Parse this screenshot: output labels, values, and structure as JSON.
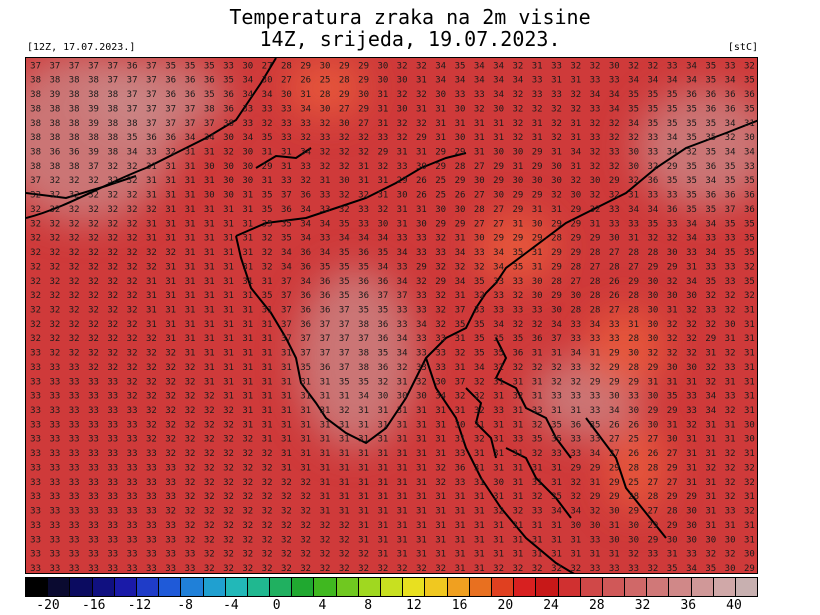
{
  "header": {
    "title_line1": "Temperatura zraka na 2m visine",
    "title_line2": "14Z, srijeda, 19.07.2023.",
    "run_label": "[12Z, 17.07.2023.]",
    "unit_label": "[stC]"
  },
  "map": {
    "background_color": "#cf3a3a",
    "hot_zone_color": "#e85a3a",
    "cool_zone_color": "#c98a8a",
    "coastline_color": "#000000",
    "grid_rows": [
      "37 37 37 37 37 36 37 35 35 35 33 30 27 28 29 30 29 29 30 32 32 34 35 34 34 32 31 33 32 32 30 32 32 33 34 35 33 32",
      "38 38 38 38 37 37 37 36 36 36 35 34 30 27 26 25 28 29 30 30 31 34 34 34 34 34 33 31 31 33 33 34 34 34 34 35 34 35",
      "38 39 38 38 38 37 37 36 36 35 36 34 34 30 31 28 29 30 31 32 32 30 33 33 34 32 33 33 32 34 34 35 35 35 36 36 36 36",
      "38 38 38 39 38 37 37 37 37 38 36 33 33 33 34 30 27 29 31 30 31 31 30 32 30 32 32 32 32 33 34 35 35 35 35 36 36 35",
      "38 38 38 39 38 38 37 37 37 37 38 33 32 33 33 32 30 27 31 32 32 31 31 31 31 32 31 32 31 32 32 34 35 35 35 35 34 31",
      "38 38 38 38 38 35 36 36 34 34 30 34 35 33 32 33 32 32 33 32 29 31 30 31 31 32 31 32 31 33 32 32 33 34 35 35 32 30",
      "38 36 36 39 38 34 33 32 31 31 32 30 31 31 34 32 32 32 29 31 31 29 29 31 30 30 29 31 34 32 33 30 33 34 32 35 34 34",
      "38 38 38 37 32 32 31 31 31 30 30 30 29 31 33 32 32 31 32 33 30 29 28 27 29 31 29 30 31 32 32 30 32 29 35 36 35 33",
      "37 32 32 32 32 32 31 31 31 31 30 30 31 33 32 31 30 31 31 29 26 25 29 30 29 30 30 30 32 30 29 32 36 35 35 34 35 35",
      "32 32 32 32 32 32 31 31 31 30 30 31 35 37 36 33 32 32 31 30 26 25 26 27 30 29 29 32 30 32 32 31 33 33 35 36 36 36",
      "32 32 32 32 32 32 32 31 31 31 31 31 35 36 34 33 32 33 32 31 31 30 30 28 27 29 31 31 29 32 33 34 34 36 35 35 37 36",
      "32 32 32 32 32 32 31 31 31 31 31 31 35 35 34 34 35 33 30 31 30 29 29 27 27 31 30 29 29 31 33 33 35 33 34 34 35 35",
      "32 32 32 32 32 32 31 31 31 31 31 31 32 35 34 33 34 34 34 33 33 32 31 30 29 29 29 28 29 29 30 31 32 32 34 33 33 35",
      "32 32 32 32 32 32 32 32 31 31 31 31 32 34 36 34 35 36 35 34 33 33 34 33 34 35 31 29 29 28 27 28 28 30 33 34 35 35",
      "32 32 32 32 32 32 32 31 31 31 31 31 32 34 36 35 35 35 34 33 29 32 32 32 34 35 31 29 28 27 28 27 29 29 31 33 33 32",
      "32 32 32 32 32 32 31 31 31 31 31 31 31 37 34 36 35 36 36 34 32 29 34 35 33 33 30 28 27 28 26 29 30 32 34 35 33 35",
      "32 32 32 32 32 32 31 31 31 31 31 31 35 37 36 36 35 36 37 37 33 32 31 32 33 32 30 29 30 28 26 28 30 30 30 32 32 32",
      "32 32 32 32 32 32 31 31 31 31 31 31 31 37 36 36 37 35 35 33 33 32 37 33 33 33 33 30 28 28 27 28 30 31 32 33 32 31",
      "32 32 32 32 32 32 31 31 31 31 31 31 31 37 36 37 37 38 36 33 34 32 35 35 34 32 32 34 33 34 33 31 30 32 32 32 30 31",
      "32 32 32 32 32 32 32 31 31 31 31 31 31 37 37 37 37 37 36 34 33 33 31 35 35 35 36 37 33 33 33 28 30 32 32 29 31 31",
      "33 32 32 32 32 32 32 32 31 31 31 31 31 31 37 37 37 38 35 34 33 33 32 35 35 36 31 31 34 31 29 30 32 32 32 31 32 31",
      "33 33 33 32 32 32 32 32 32 31 31 31 31 31 35 36 37 38 36 32 33 33 31 34 32 32 32 32 33 32 29 28 29 30 30 32 33 31",
      "33 33 33 33 33 32 32 32 32 31 31 31 31 31 31 31 35 35 32 31 32 30 37 32 31 31 31 32 32 29 29 29 31 31 31 32 31 31",
      "33 33 33 33 33 32 32 32 32 32 31 31 31 31 31 31 31 34 30 30 30 34 32 32 31 32 31 33 33 33 30 33 30 35 33 34 33 31",
      "33 33 33 33 33 33 32 32 32 32 32 31 31 31 31 31 32 31 31 31 31 31 31 32 33 31 33 31 31 33 34 30 29 29 33 34 32 31",
      "33 33 33 33 33 33 32 32 32 32 32 31 31 31 31 31 31 31 31 31 31 31 30 31 31 31 32 35 36 35 26 26 30 31 32 31 31 30",
      "33 33 33 33 33 33 32 32 32 32 32 32 31 31 31 31 31 31 31 31 31 31 31 32 31 33 35 35 33 33 27 25 27 30 31 31 31 30",
      "33 33 33 33 33 33 33 32 32 32 32 32 32 31 31 31 31 31 31 31 31 31 33 31 31 31 32 33 33 34 27 26 26 27 31 31 32 31",
      "33 33 33 33 33 33 33 33 32 32 32 32 32 31 31 31 31 31 31 31 31 32 36 31 31 31 31 31 29 29 29 28 28 29 31 32 32 32",
      "33 33 33 33 33 33 33 33 32 32 32 32 32 32 32 31 31 31 31 31 31 32 33 31 30 31 31 31 32 31 29 25 27 27 31 31 32 32",
      "33 33 33 33 33 33 33 33 32 32 32 32 32 32 32 31 31 31 31 31 31 31 31 31 31 31 32 35 32 29 29 28 28 29 29 31 32 31",
      "33 33 33 33 33 33 33 32 32 32 32 32 32 32 32 31 31 31 31 31 31 31 31 31 32 32 33 34 34 32 30 29 27 28 30 31 33 32",
      "33 33 33 33 33 33 33 33 32 32 32 32 32 32 32 32 32 31 31 31 31 31 31 31 31 31 31 31 30 30 31 30 29 29 30 31 31 31",
      "33 33 33 33 33 33 33 33 32 32 32 32 32 32 32 32 32 31 31 31 31 31 31 31 31 31 31 31 31 33 30 30 29 30 30 30 30 31",
      "33 33 33 33 33 33 33 33 33 32 32 32 32 32 32 32 32 32 31 31 31 31 31 31 31 31 31 31 31 31 31 32 33 31 33 32 32 30",
      "33 33 33 33 33 33 33 33 33 32 32 32 32 32 32 32 32 32 32 32 32 32 31 31 32 32 32 32 32 33 33 33 32 35 34 35 30 29"
    ]
  },
  "colorbar": {
    "colors": [
      "#000000",
      "#0a0a30",
      "#0b0b60",
      "#101080",
      "#1a1aa8",
      "#1f3cc8",
      "#1f5ad8",
      "#2080d8",
      "#20a0d0",
      "#22b8b8",
      "#20b890",
      "#20b060",
      "#20a830",
      "#40b820",
      "#70c820",
      "#a0d820",
      "#c8e020",
      "#e8e020",
      "#f0c820",
      "#f0a020",
      "#e87020",
      "#e04020",
      "#d82020",
      "#c81818",
      "#d03030",
      "#d04848",
      "#d05858",
      "#d06868",
      "#d07878",
      "#d08888",
      "#d09898",
      "#d0a8a8",
      "#c8b0b0"
    ],
    "ticks": [
      "-20",
      "-16",
      "-12",
      "-8",
      "-4",
      "0",
      "4",
      "8",
      "12",
      "16",
      "20",
      "24",
      "28",
      "32",
      "36",
      "40"
    ]
  }
}
